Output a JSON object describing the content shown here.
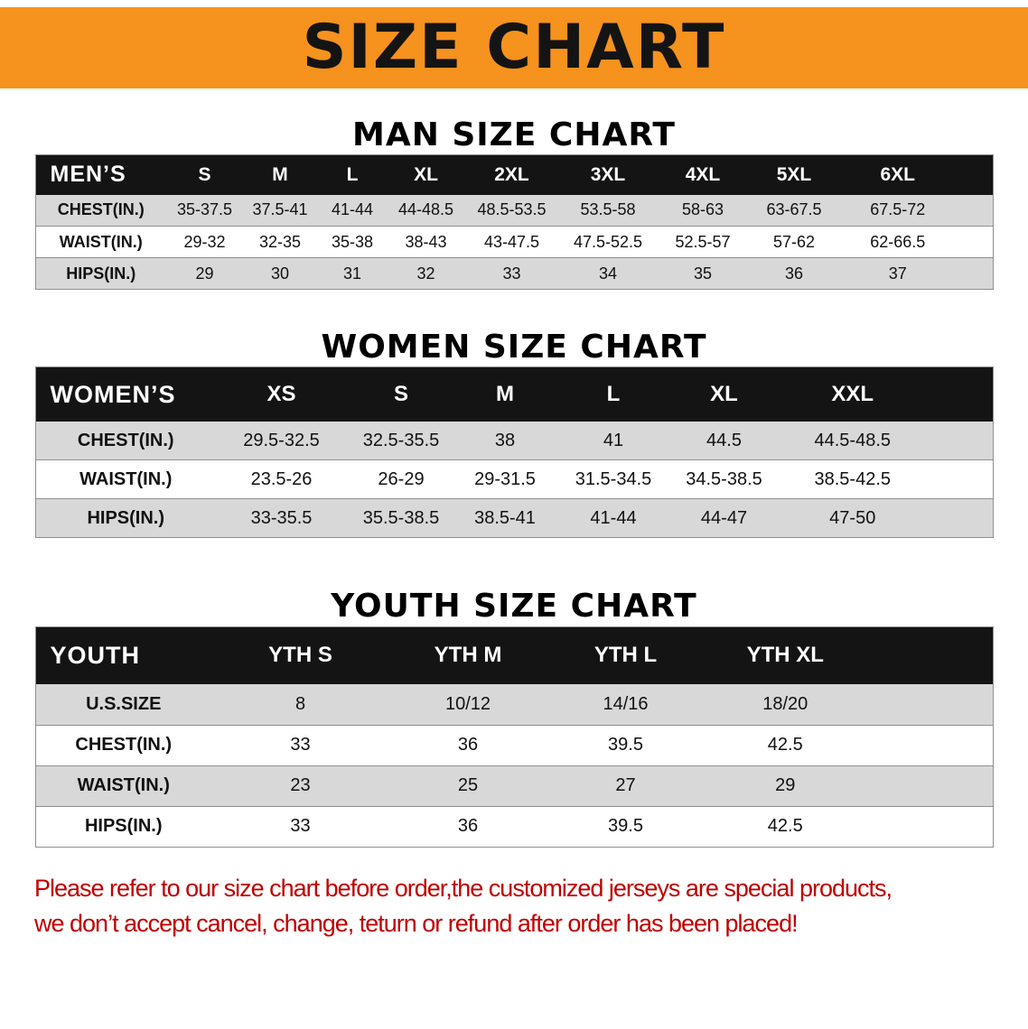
{
  "banner": {
    "title": "SIZE CHART"
  },
  "colors": {
    "banner_bg": "#f6921e",
    "table_header_bg": "#141414",
    "row_alt_bg": "#d8d8d8",
    "footer_text": "#c00000"
  },
  "men": {
    "heading": "MAN SIZE CHART",
    "table": {
      "label": "MEN’S",
      "columns": [
        "S",
        "M",
        "L",
        "XL",
        "2XL",
        "3XL",
        "4XL",
        "5XL",
        "6XL"
      ],
      "rows": [
        {
          "label": "CHEST(IN.)",
          "values": [
            "35-37.5",
            "37.5-41",
            "41-44",
            "44-48.5",
            "48.5-53.5",
            "53.5-58",
            "58-63",
            "63-67.5",
            "67.5-72"
          ]
        },
        {
          "label": "WAIST(IN.)",
          "values": [
            "29-32",
            "32-35",
            "35-38",
            "38-43",
            "43-47.5",
            "47.5-52.5",
            "52.5-57",
            "57-62",
            "62-66.5"
          ]
        },
        {
          "label": "HIPS(IN.)",
          "values": [
            "29",
            "30",
            "31",
            "32",
            "33",
            "34",
            "35",
            "36",
            "37"
          ]
        }
      ]
    }
  },
  "women": {
    "heading": "WOMEN SIZE CHART",
    "table": {
      "label": "WOMEN’S",
      "columns": [
        "XS",
        "S",
        "M",
        "L",
        "XL",
        "XXL"
      ],
      "rows": [
        {
          "label": "CHEST(IN.)",
          "values": [
            "29.5-32.5",
            "32.5-35.5",
            "38",
            "41",
            "44.5",
            "44.5-48.5"
          ]
        },
        {
          "label": "WAIST(IN.)",
          "values": [
            "23.5-26",
            "26-29",
            "29-31.5",
            "31.5-34.5",
            "34.5-38.5",
            "38.5-42.5"
          ]
        },
        {
          "label": "HIPS(IN.)",
          "values": [
            "33-35.5",
            "35.5-38.5",
            "38.5-41",
            "41-44",
            "44-47",
            "47-50"
          ]
        }
      ]
    }
  },
  "youth": {
    "heading": "YOUTH SIZE CHART",
    "table": {
      "label": "YOUTH",
      "columns": [
        "YTH S",
        "YTH M",
        "YTH L",
        "YTH XL"
      ],
      "rows": [
        {
          "label": "U.S.SIZE",
          "values": [
            "8",
            "10/12",
            "14/16",
            "18/20"
          ]
        },
        {
          "label": "CHEST(IN.)",
          "values": [
            "33",
            "36",
            "39.5",
            "42.5"
          ]
        },
        {
          "label": "WAIST(IN.)",
          "values": [
            "23",
            "25",
            "27",
            "29"
          ]
        },
        {
          "label": "HIPS(IN.)",
          "values": [
            "33",
            "36",
            "39.5",
            "42.5"
          ]
        }
      ]
    }
  },
  "footer": {
    "line1": "Please refer to our size chart before order,the customized jerseys are special products,",
    "line2": "we don’t accept cancel, change, teturn or refund after order has been placed!"
  }
}
